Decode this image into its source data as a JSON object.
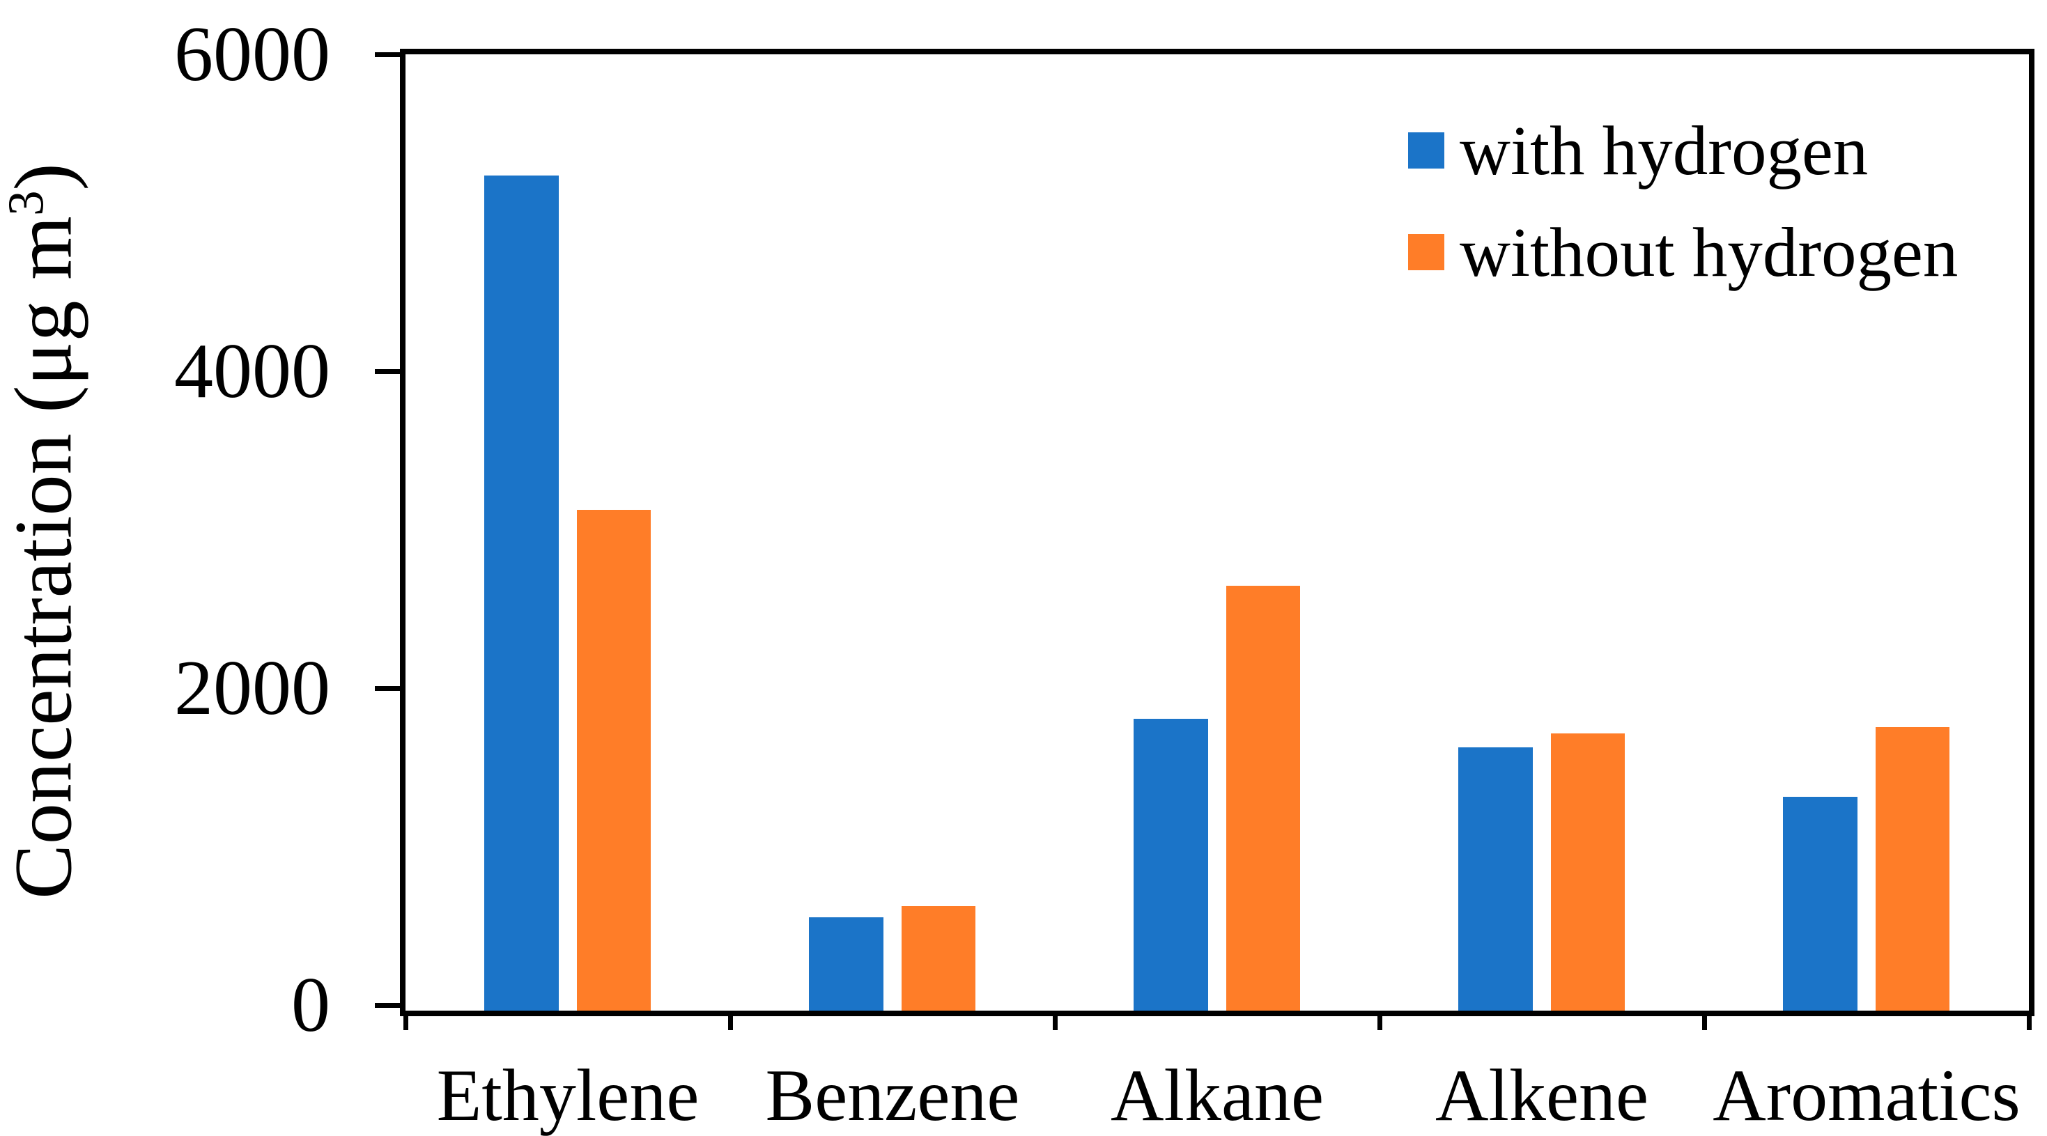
{
  "chart_data": {
    "type": "bar",
    "title": "",
    "categories": [
      "Ethylene",
      "Benzene",
      "Alkane",
      "Alkene",
      "Aromatics"
    ],
    "series": [
      {
        "name": "with hydrogen",
        "color": "#1B74C8",
        "values": [
          5270,
          590,
          1840,
          1660,
          1350
        ]
      },
      {
        "name": "without hydrogen",
        "color": "#FF7D28",
        "values": [
          3160,
          660,
          2680,
          1750,
          1790
        ]
      }
    ],
    "ylabel": {
      "text": "Concentration (μg m",
      "superscript": "3",
      "suffix": ")"
    },
    "yticks": [
      0,
      2000,
      4000,
      6000
    ],
    "ylim": [
      0,
      6000
    ],
    "grid": false,
    "legend_position": "top-right",
    "axis_color": "#000000",
    "background_color": "#FFFFFF"
  }
}
